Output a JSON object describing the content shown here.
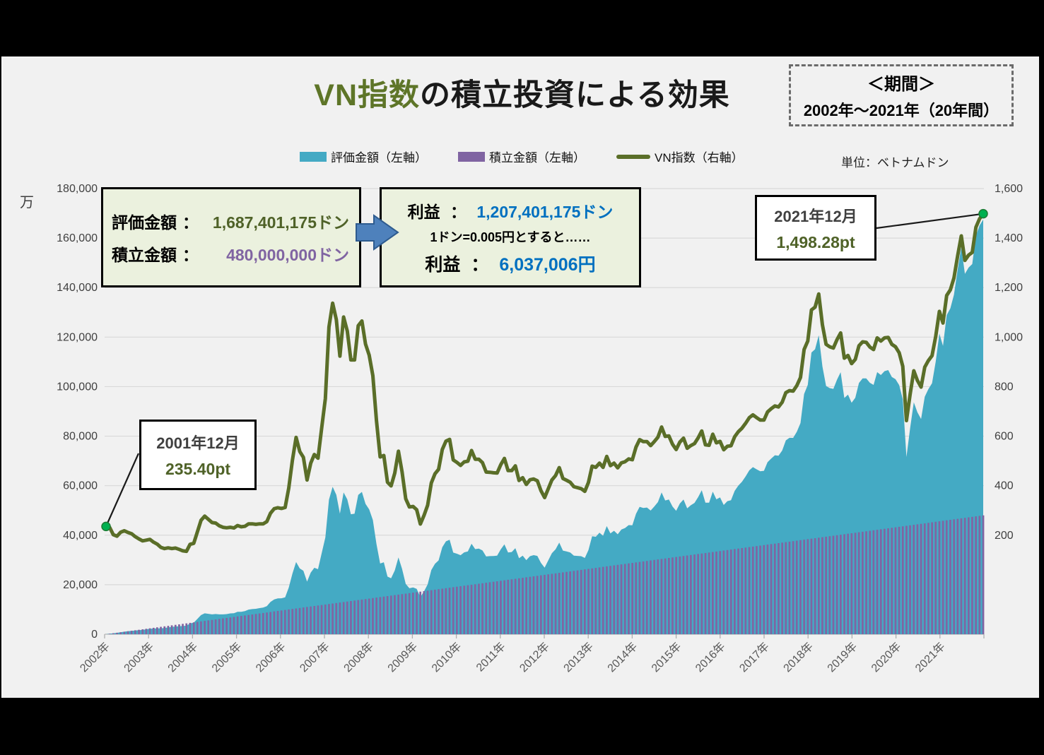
{
  "title": {
    "accent": "VN指数",
    "rest": "の積立投資による効果"
  },
  "period_box": {
    "line1": "＜期間＞",
    "line2": "2002年～2021年（20年間）"
  },
  "legend": {
    "items": [
      {
        "label": "評価金額（左軸）",
        "color": "#44AAC4",
        "marker": "rect"
      },
      {
        "label": "積立金額（左軸）",
        "color": "#8064A2",
        "marker": "rect"
      },
      {
        "label": "VN指数（右軸）",
        "color": "#5A6E28",
        "marker": "line"
      }
    ]
  },
  "unit_label": "単位：ベトナムドン",
  "summary_box": {
    "row1_label": "評価金額",
    "row1_sep": "：",
    "row1_value": "1,687,401,175ドン",
    "row2_label": "積立金額",
    "row2_sep": "：",
    "row2_value": "480,000,000ドン"
  },
  "profit_box": {
    "row1_label": "利益",
    "row1_sep": "：",
    "row1_value": "1,207,401,175ドン",
    "row2_text": "1ドン=0.005円とすると……",
    "row3_label": "利益",
    "row3_sep": "：",
    "row3_value": "6,037,006円"
  },
  "callout_start": {
    "line1": "2001年12月",
    "line2": "235.40pt"
  },
  "callout_end": {
    "line1": "2021年12月",
    "line2": "1,498.28pt"
  },
  "chart_data": {
    "type": "combo",
    "title": "VN指数の積立投資による効果",
    "period": "2002年～2021年（20年間）",
    "x_start": "2001-12",
    "x_end": "2021-12",
    "x_tick_labels": [
      "2002年",
      "2003年",
      "2004年",
      "2005年",
      "2006年",
      "2007年",
      "2008年",
      "2009年",
      "2010年",
      "2011年",
      "2012年",
      "2013年",
      "2014年",
      "2015年",
      "2016年",
      "2017年",
      "2018年",
      "2019年",
      "2020年",
      "2021年"
    ],
    "left_axis": {
      "unit": "万",
      "min": 0,
      "max": 180000,
      "step": 20000,
      "tick_labels": [
        "0",
        "20,000",
        "40,000",
        "60,000",
        "80,000",
        "100,000",
        "120,000",
        "140,000",
        "160,000",
        "180,000"
      ]
    },
    "right_axis": {
      "plot_min": -200,
      "plot_max": 1600,
      "step": 200,
      "tick_values": [
        200,
        400,
        600,
        800,
        1000,
        1200,
        1400,
        1600
      ],
      "tick_labels": [
        "200",
        "400",
        "600",
        "800",
        "1,000",
        "1,200",
        "1,400",
        "1,600"
      ]
    },
    "grid": true,
    "legend_position": "top",
    "series": [
      {
        "name": "評価金額（左軸）",
        "type": "area",
        "axis": "left",
        "color": "#44AAC4",
        "final_value_don": 1687401175
      },
      {
        "name": "積立金額（左軸）",
        "type": "bar",
        "axis": "left",
        "color": "#8064A2",
        "monthly_don": 2000000,
        "final_value_don": 480000000
      },
      {
        "name": "VN指数（右軸）",
        "type": "line",
        "axis": "right",
        "color": "#5A6E28",
        "start_point": {
          "label": "2001年12月",
          "value": 235.4
        },
        "end_point": {
          "label": "2021年12月",
          "value": 1498.28
        },
        "monthly_values": [
          235.4,
          231,
          202,
          196,
          212,
          218,
          211,
          206,
          194,
          185,
          177,
          180,
          183,
          172,
          164,
          151,
          146,
          149,
          146,
          148,
          143,
          137,
          135,
          163,
          167,
          214,
          260,
          277,
          264,
          251,
          249,
          238,
          232,
          230,
          232,
          229,
          239,
          234,
          236,
          246,
          246,
          244,
          246,
          246,
          255,
          289,
          307,
          311,
          308,
          312,
          390,
          503,
          595,
          538,
          515,
          423,
          491,
          526,
          511,
          633,
          752,
          1041,
          1137,
          1071,
          923,
          1081,
          1025,
          908,
          908,
          1046,
          1065,
          972,
          927,
          844,
          663,
          516,
          522,
          414,
          399,
          451,
          539,
          456,
          347,
          314,
          316,
          303,
          245,
          280,
          321,
          411,
          448,
          466,
          546,
          580,
          587,
          504,
          494,
          482,
          496,
          499,
          542,
          507,
          507,
          493,
          455,
          454,
          452,
          451,
          485,
          510,
          461,
          461,
          480,
          421,
          432,
          405,
          424,
          427,
          420,
          380,
          352,
          388,
          423,
          441,
          473,
          429,
          422,
          414,
          396,
          392,
          388,
          377,
          413,
          479,
          474,
          491,
          474,
          518,
          481,
          491,
          472,
          492,
          497,
          508,
          505,
          556,
          586,
          578,
          578,
          562,
          578,
          596,
          637,
          599,
          601,
          567,
          546,
          576,
          592,
          551,
          562,
          570,
          593,
          621,
          565,
          563,
          608,
          573,
          579,
          545,
          559,
          561,
          598,
          618,
          632,
          652,
          675,
          686,
          675,
          665,
          665,
          698,
          711,
          722,
          718,
          737,
          776,
          784,
          782,
          804,
          837,
          950,
          984,
          1110,
          1121,
          1174,
          1050,
          971,
          961,
          956,
          990,
          1017,
          915,
          926,
          893,
          910,
          965,
          981,
          979,
          960,
          950,
          997,
          984,
          997,
          999,
          971,
          961,
          937,
          882,
          663,
          769,
          864,
          825,
          798,
          879,
          905,
          925,
          1003,
          1104,
          1057,
          1168,
          1191,
          1239,
          1328,
          1409,
          1310,
          1331,
          1342,
          1444,
          1478,
          1498.28
        ]
      }
    ]
  }
}
